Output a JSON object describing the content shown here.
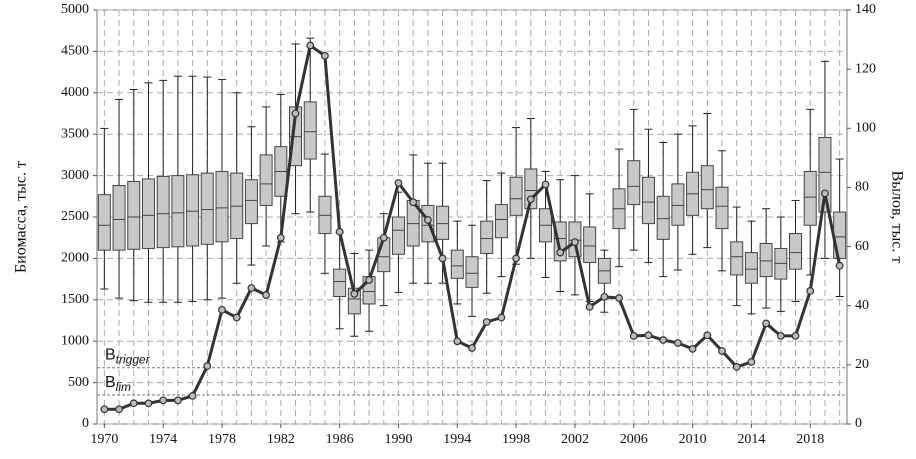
{
  "chart_data": {
    "type": "boxplot",
    "y_label": "Биомасса, тыс. т",
    "y2_label": "Вылов, тыс. т",
    "x": [
      1970,
      1971,
      1972,
      1973,
      1974,
      1975,
      1976,
      1977,
      1978,
      1979,
      1980,
      1981,
      1982,
      1983,
      1984,
      1985,
      1986,
      1987,
      1988,
      1989,
      1990,
      1991,
      1992,
      1993,
      1994,
      1995,
      1996,
      1997,
      1998,
      1999,
      2000,
      2001,
      2002,
      2003,
      2004,
      2005,
      2006,
      2007,
      2008,
      2009,
      2010,
      2011,
      2012,
      2013,
      2014,
      2015,
      2016,
      2017,
      2018,
      2019,
      2020
    ],
    "xlim": [
      1969.5,
      2020.5
    ],
    "xticks": [
      1970,
      1974,
      1978,
      1982,
      1986,
      1990,
      1994,
      1998,
      2002,
      2006,
      2010,
      2014,
      2018
    ],
    "ylim": [
      0,
      5000
    ],
    "yticks": [
      0,
      500,
      1000,
      1500,
      2000,
      2500,
      3000,
      3500,
      4000,
      4500,
      5000
    ],
    "y2lim": [
      0,
      140
    ],
    "y2ticks": [
      0,
      20,
      40,
      60,
      80,
      100,
      120,
      140
    ],
    "grid": true,
    "boxes": {
      "color": "#c8c8c8",
      "whisker_low": [
        1630,
        1520,
        1490,
        1470,
        1470,
        1470,
        1480,
        1500,
        1520,
        1700,
        1920,
        2150,
        2200,
        2540,
        2560,
        1820,
        1150,
        1060,
        1120,
        1430,
        1590,
        1700,
        1700,
        1700,
        1450,
        1300,
        1580,
        1780,
        1930,
        2000,
        1770,
        1600,
        1560,
        1480,
        1350,
        1900,
        2100,
        1950,
        1780,
        1860,
        2050,
        2130,
        1850,
        1430,
        1330,
        1400,
        1360,
        1480,
        1800,
        2000,
        1540
      ],
      "q1": [
        2100,
        2100,
        2110,
        2120,
        2130,
        2140,
        2150,
        2170,
        2200,
        2240,
        2420,
        2640,
        2750,
        3120,
        3200,
        2300,
        1540,
        1330,
        1450,
        1840,
        2050,
        2150,
        2200,
        2230,
        1760,
        1650,
        2060,
        2250,
        2520,
        2600,
        2200,
        1970,
        2020,
        1950,
        1700,
        2360,
        2650,
        2420,
        2230,
        2400,
        2520,
        2600,
        2360,
        1800,
        1700,
        1780,
        1750,
        1870,
        2400,
        2560,
        2000
      ],
      "median": [
        2400,
        2470,
        2500,
        2520,
        2540,
        2550,
        2570,
        2590,
        2610,
        2630,
        2700,
        2900,
        3050,
        3470,
        3530,
        2520,
        1720,
        1510,
        1600,
        2020,
        2340,
        2420,
        2400,
        2420,
        1910,
        1820,
        2240,
        2470,
        2720,
        2820,
        2400,
        2240,
        2220,
        2150,
        1850,
        2600,
        2870,
        2680,
        2480,
        2640,
        2780,
        2830,
        2630,
        2020,
        1870,
        1970,
        1940,
        2070,
        2740,
        3040,
        2260
      ],
      "q3": [
        2770,
        2880,
        2930,
        2960,
        2990,
        3000,
        3010,
        3030,
        3050,
        3030,
        2950,
        3250,
        3350,
        3830,
        3890,
        2750,
        1870,
        1640,
        1780,
        2250,
        2500,
        2700,
        2640,
        2630,
        2100,
        2020,
        2450,
        2650,
        2980,
        3080,
        2600,
        2440,
        2440,
        2380,
        2000,
        2840,
        3180,
        2980,
        2750,
        2900,
        3040,
        3120,
        2860,
        2200,
        2070,
        2180,
        2120,
        2300,
        3050,
        3460,
        2560
      ],
      "whisker_high": [
        3570,
        3920,
        4040,
        4120,
        4150,
        4200,
        4200,
        4190,
        4160,
        4000,
        3590,
        3830,
        3980,
        4590,
        4660,
        3260,
        2310,
        2060,
        2100,
        2540,
        2800,
        3250,
        3150,
        3150,
        2450,
        2400,
        2940,
        3030,
        3580,
        3690,
        3050,
        2950,
        3000,
        2780,
        2100,
        3320,
        3800,
        3560,
        3400,
        3500,
        3600,
        3750,
        3300,
        2620,
        2450,
        2600,
        2500,
        2700,
        3800,
        4380,
        3200
      ]
    },
    "line": {
      "axis": "y2",
      "color": "#333333",
      "values": [
        5,
        5,
        7,
        7,
        8,
        8,
        9.5,
        19.6,
        38.6,
        36,
        46,
        43.6,
        63,
        105,
        128,
        124.5,
        65,
        44,
        48.7,
        63,
        81.5,
        75,
        69,
        56,
        28,
        25.7,
        34.5,
        36,
        56,
        76,
        81,
        58,
        61.5,
        39.6,
        43,
        42.6,
        29.8,
        30,
        28.4,
        27.4,
        25.4,
        30,
        24.7,
        19.3,
        21,
        34,
        29.8,
        29.8,
        45,
        78,
        53.5
      ]
    },
    "reference_lines": [
      {
        "value": 680,
        "symbol": "B",
        "subscript": "trigger"
      },
      {
        "value": 350,
        "symbol": "B",
        "subscript": "lim"
      }
    ]
  }
}
